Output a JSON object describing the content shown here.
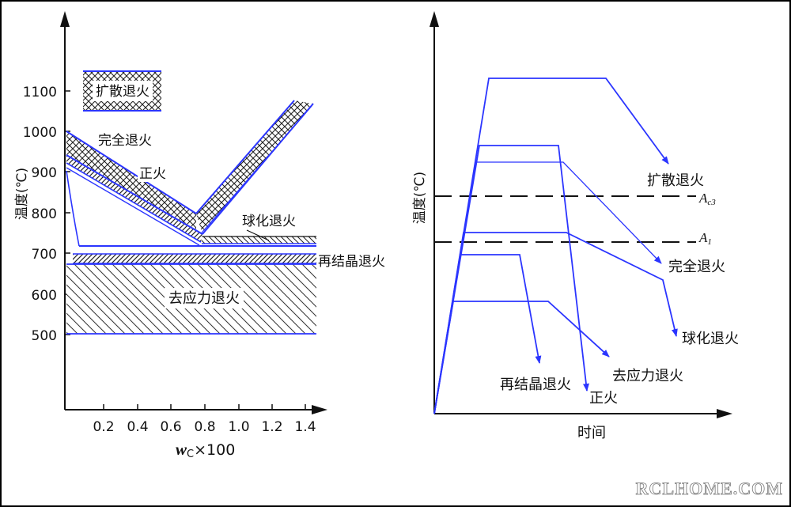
{
  "left_diagram": {
    "y_axis_label": "温度(℃)",
    "y_ticks": [
      "1100",
      "1000",
      "900",
      "800",
      "700",
      "600",
      "500"
    ],
    "x_ticks": [
      "0.2",
      "0.4",
      "0.6",
      "0.8",
      "1.0",
      "1.2",
      "1.4"
    ],
    "x_axis_label_w": "w",
    "x_axis_label_sub": "C",
    "x_axis_label_rest": "×100",
    "regions": {
      "diffusion": "扩散退火",
      "full": "完全退火",
      "normalizing": "正火",
      "spheroidizing": "球化退火",
      "recrystallization": "再结晶退火",
      "stress_relief": "去应力退火"
    }
  },
  "right_diagram": {
    "y_axis_label": "温度(℃)",
    "x_axis_label": "时间",
    "lines": {
      "ac3_main": "A",
      "ac3_sub": "c3",
      "a1_main": "A",
      "a1_sub": "1"
    },
    "curves": {
      "diffusion": "扩散退火",
      "full": "完全退火",
      "spheroidizing": "球化退火",
      "recrystallization": "再结晶退火",
      "normalizing": "正火",
      "stress_relief": "去应力退火"
    }
  },
  "watermark": "RCLHOME.COM",
  "colors": {
    "curve": "#2b35ff",
    "ink": "#111111",
    "border": "#000000"
  }
}
